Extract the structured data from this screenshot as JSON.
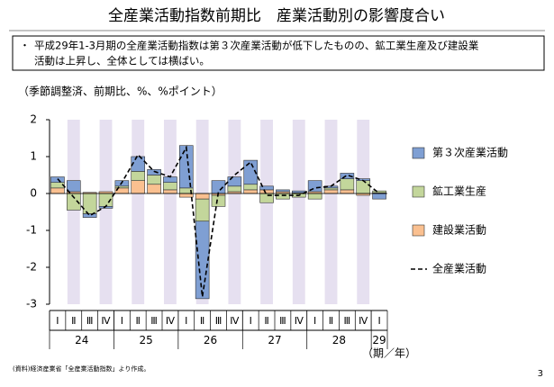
{
  "chart_data": {
    "type": "bar",
    "title": "全産業活動指数前期比　産業活動別の影響度合い",
    "summary_lines": [
      "平成29年1-3月期の全産業活動指数は第３次産業活動が低下したものの、鉱工業生産及び建設業",
      "活動は上昇し、全体としては横ばい。"
    ],
    "subtitle": "（季節調整済、前期比、%、%ポイント）",
    "categories": [
      "Ⅰ",
      "Ⅱ",
      "Ⅲ",
      "Ⅳ",
      "Ⅰ",
      "Ⅱ",
      "Ⅲ",
      "Ⅳ",
      "Ⅰ",
      "Ⅱ",
      "Ⅲ",
      "Ⅳ",
      "Ⅰ",
      "Ⅱ",
      "Ⅲ",
      "Ⅳ",
      "Ⅰ",
      "Ⅱ",
      "Ⅲ",
      "Ⅳ",
      "Ⅰ"
    ],
    "year_labels": [
      "24",
      "25",
      "26",
      "27",
      "28",
      "29"
    ],
    "x_label": "（期／年）",
    "series": [
      {
        "name": "第３次産業活動",
        "kind": "bar",
        "color": "#7f9fd3",
        "values": [
          0.15,
          0.3,
          -0.1,
          -0.05,
          0.15,
          0.4,
          0.15,
          0.15,
          1.15,
          -2.1,
          0.35,
          0.25,
          0.65,
          0.1,
          0.05,
          0.05,
          0.3,
          0.05,
          0.15,
          0.05,
          -0.15
        ]
      },
      {
        "name": "鉱工業生産",
        "kind": "bar",
        "color": "#c3d69b",
        "values": [
          0.15,
          -0.45,
          -0.55,
          -0.35,
          0.05,
          0.25,
          0.25,
          0.2,
          0.15,
          -0.6,
          -0.3,
          0.15,
          0.15,
          -0.25,
          -0.15,
          -0.1,
          -0.15,
          0.05,
          0.3,
          0.35,
          0.05
        ]
      },
      {
        "name": "建設業活動",
        "kind": "bar",
        "color": "#fac090",
        "values": [
          0.15,
          0.05,
          0.03,
          0.05,
          0.15,
          0.35,
          0.25,
          0.1,
          -0.1,
          -0.15,
          -0.05,
          0.05,
          0.1,
          0.1,
          0.05,
          0.02,
          0.05,
          0.1,
          0.1,
          -0.05,
          0.02
        ]
      },
      {
        "name": "全産業活動",
        "kind": "line",
        "color": "#000000",
        "values": [
          0.4,
          -0.1,
          -0.6,
          -0.35,
          0.3,
          1.05,
          0.6,
          0.45,
          1.25,
          -2.8,
          0.05,
          0.5,
          0.85,
          -0.05,
          -0.05,
          -0.05,
          0.15,
          0.2,
          0.5,
          0.35,
          0.0
        ]
      }
    ],
    "ylim": [
      -3,
      2
    ],
    "yticks": [
      2,
      1,
      0,
      -1,
      -2,
      -3
    ],
    "source": "(資料)経済産業省「全産業活動指数」より作成。",
    "page_number": "3"
  }
}
